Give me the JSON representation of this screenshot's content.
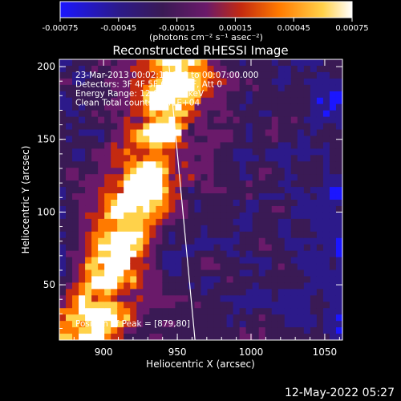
{
  "colors": {
    "background": "#000000",
    "text": "#ffffff",
    "colorbar": [
      "#1b16ff",
      "#2c1a8a",
      "#3a1a55",
      "#6a1a6a",
      "#c42a10",
      "#ff7a00",
      "#ffd24a",
      "#ffffff"
    ]
  },
  "colorbar": {
    "ticks": [
      "-0.00075",
      "-0.00045",
      "-0.00015",
      "0.00015",
      "0.00045",
      "0.00075"
    ],
    "units_label": "(photons cm⁻² s⁻¹ asec⁻²)"
  },
  "chart_data": {
    "type": "heatmap",
    "title": "Reconstructed RHESSI Image",
    "xlabel": "Heliocentric X (arcsec)",
    "ylabel": "Heliocentric Y (arcsec)",
    "xlim": [
      870,
      1062
    ],
    "ylim": [
      12,
      205
    ],
    "xticks": [
      "900",
      "950",
      "1000",
      "1050"
    ],
    "yticks": [
      "50",
      "100",
      "150",
      "200"
    ],
    "annotations": [
      "23-Mar-2013 00:02:12.000 to 00:07:00.000",
      "Detectors: 3F 4F 5F 6F 7F 8F, Att 0",
      "Energy Range: 12.0 - 25.0 keV",
      "Clean    Total counts: 1.41E+04"
    ],
    "peak_label": "Position of Peak = [879,80]",
    "limb_line": [
      [
        944,
        205
      ],
      [
        962,
        12
      ]
    ]
  },
  "footer_date": "12-May-2022 05:27"
}
